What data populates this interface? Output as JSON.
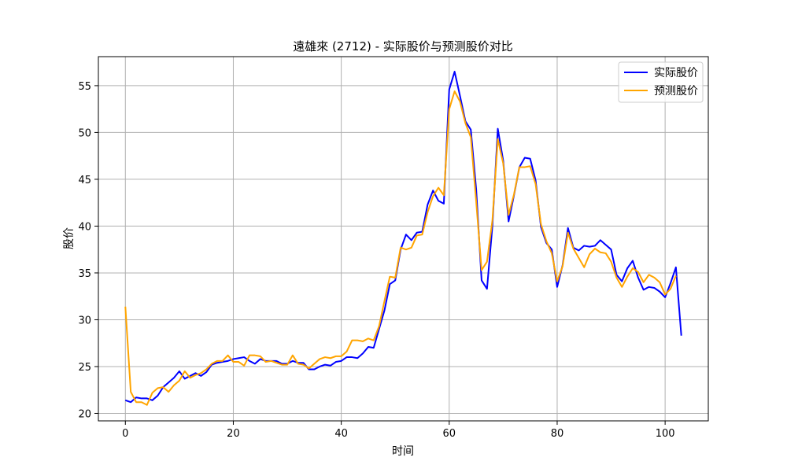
{
  "chart_data": {
    "type": "line",
    "title": "遠雄來 (2712) - 实际股价与预测股价对比",
    "xlabel": "时间",
    "ylabel": "股价",
    "xlim": [
      -5,
      108
    ],
    "ylim": [
      19.2,
      58.1
    ],
    "xticks": [
      0,
      20,
      40,
      60,
      80,
      100
    ],
    "yticks": [
      20,
      25,
      30,
      35,
      40,
      45,
      50,
      55
    ],
    "grid": true,
    "legend_position": "top-right",
    "series": [
      {
        "name": "实际股价",
        "color": "#0000ff",
        "values": [
          21.4,
          21.2,
          21.7,
          21.6,
          21.6,
          21.4,
          21.9,
          22.8,
          23.3,
          23.8,
          24.5,
          23.7,
          24.0,
          24.3,
          24.0,
          24.4,
          25.2,
          25.4,
          25.5,
          25.6,
          25.8,
          25.9,
          26.0,
          25.6,
          25.3,
          25.8,
          25.6,
          25.6,
          25.6,
          25.3,
          25.3,
          25.6,
          25.4,
          25.4,
          24.7,
          24.7,
          25.0,
          25.2,
          25.1,
          25.5,
          25.6,
          26.0,
          26.0,
          25.9,
          26.4,
          27.1,
          27.0,
          29.0,
          31.0,
          33.8,
          34.2,
          37.5,
          39.1,
          38.5,
          39.3,
          39.4,
          42.3,
          43.8,
          42.7,
          42.4,
          54.6,
          56.5,
          53.9,
          51.2,
          50.3,
          43.9,
          34.2,
          33.3,
          40.0,
          50.4,
          47.0,
          40.5,
          43.3,
          46.3,
          47.3,
          47.2,
          44.9,
          39.9,
          38.2,
          37.5,
          33.5,
          35.8,
          39.8,
          37.7,
          37.4,
          37.9,
          37.8,
          37.9,
          38.5,
          38.0,
          37.5,
          34.8,
          34.1,
          35.5,
          36.3,
          34.5,
          33.2,
          33.5,
          33.4,
          33.0,
          32.4,
          33.9,
          35.6,
          28.3
        ]
      },
      {
        "name": "预测股价",
        "color": "#ffa500",
        "values": [
          31.4,
          22.3,
          21.2,
          21.2,
          20.9,
          22.2,
          22.7,
          22.8,
          22.3,
          23.0,
          23.5,
          24.5,
          23.8,
          24.1,
          24.3,
          24.7,
          25.3,
          25.6,
          25.6,
          26.2,
          25.5,
          25.5,
          25.1,
          26.2,
          26.2,
          26.1,
          25.5,
          25.6,
          25.4,
          25.2,
          25.2,
          26.2,
          25.3,
          25.2,
          24.8,
          25.3,
          25.8,
          26.0,
          25.9,
          26.1,
          26.1,
          26.6,
          27.8,
          27.8,
          27.7,
          28.0,
          27.8,
          29.3,
          32.0,
          34.6,
          34.5,
          37.7,
          37.5,
          37.7,
          39.0,
          39.1,
          41.5,
          43.2,
          44.1,
          43.3,
          52.5,
          54.4,
          53.3,
          51.0,
          49.5,
          42.6,
          35.3,
          36.2,
          40.6,
          49.3,
          46.7,
          41.2,
          43.4,
          46.3,
          46.3,
          46.4,
          44.5,
          40.2,
          38.4,
          37.1,
          34.1,
          35.7,
          39.3,
          37.6,
          36.6,
          35.6,
          37.0,
          37.6,
          37.2,
          37.1,
          36.2,
          34.5,
          33.5,
          34.6,
          35.5,
          35.1,
          34.0,
          34.8,
          34.5,
          34.0,
          32.7,
          33.3,
          34.7
        ]
      }
    ]
  }
}
